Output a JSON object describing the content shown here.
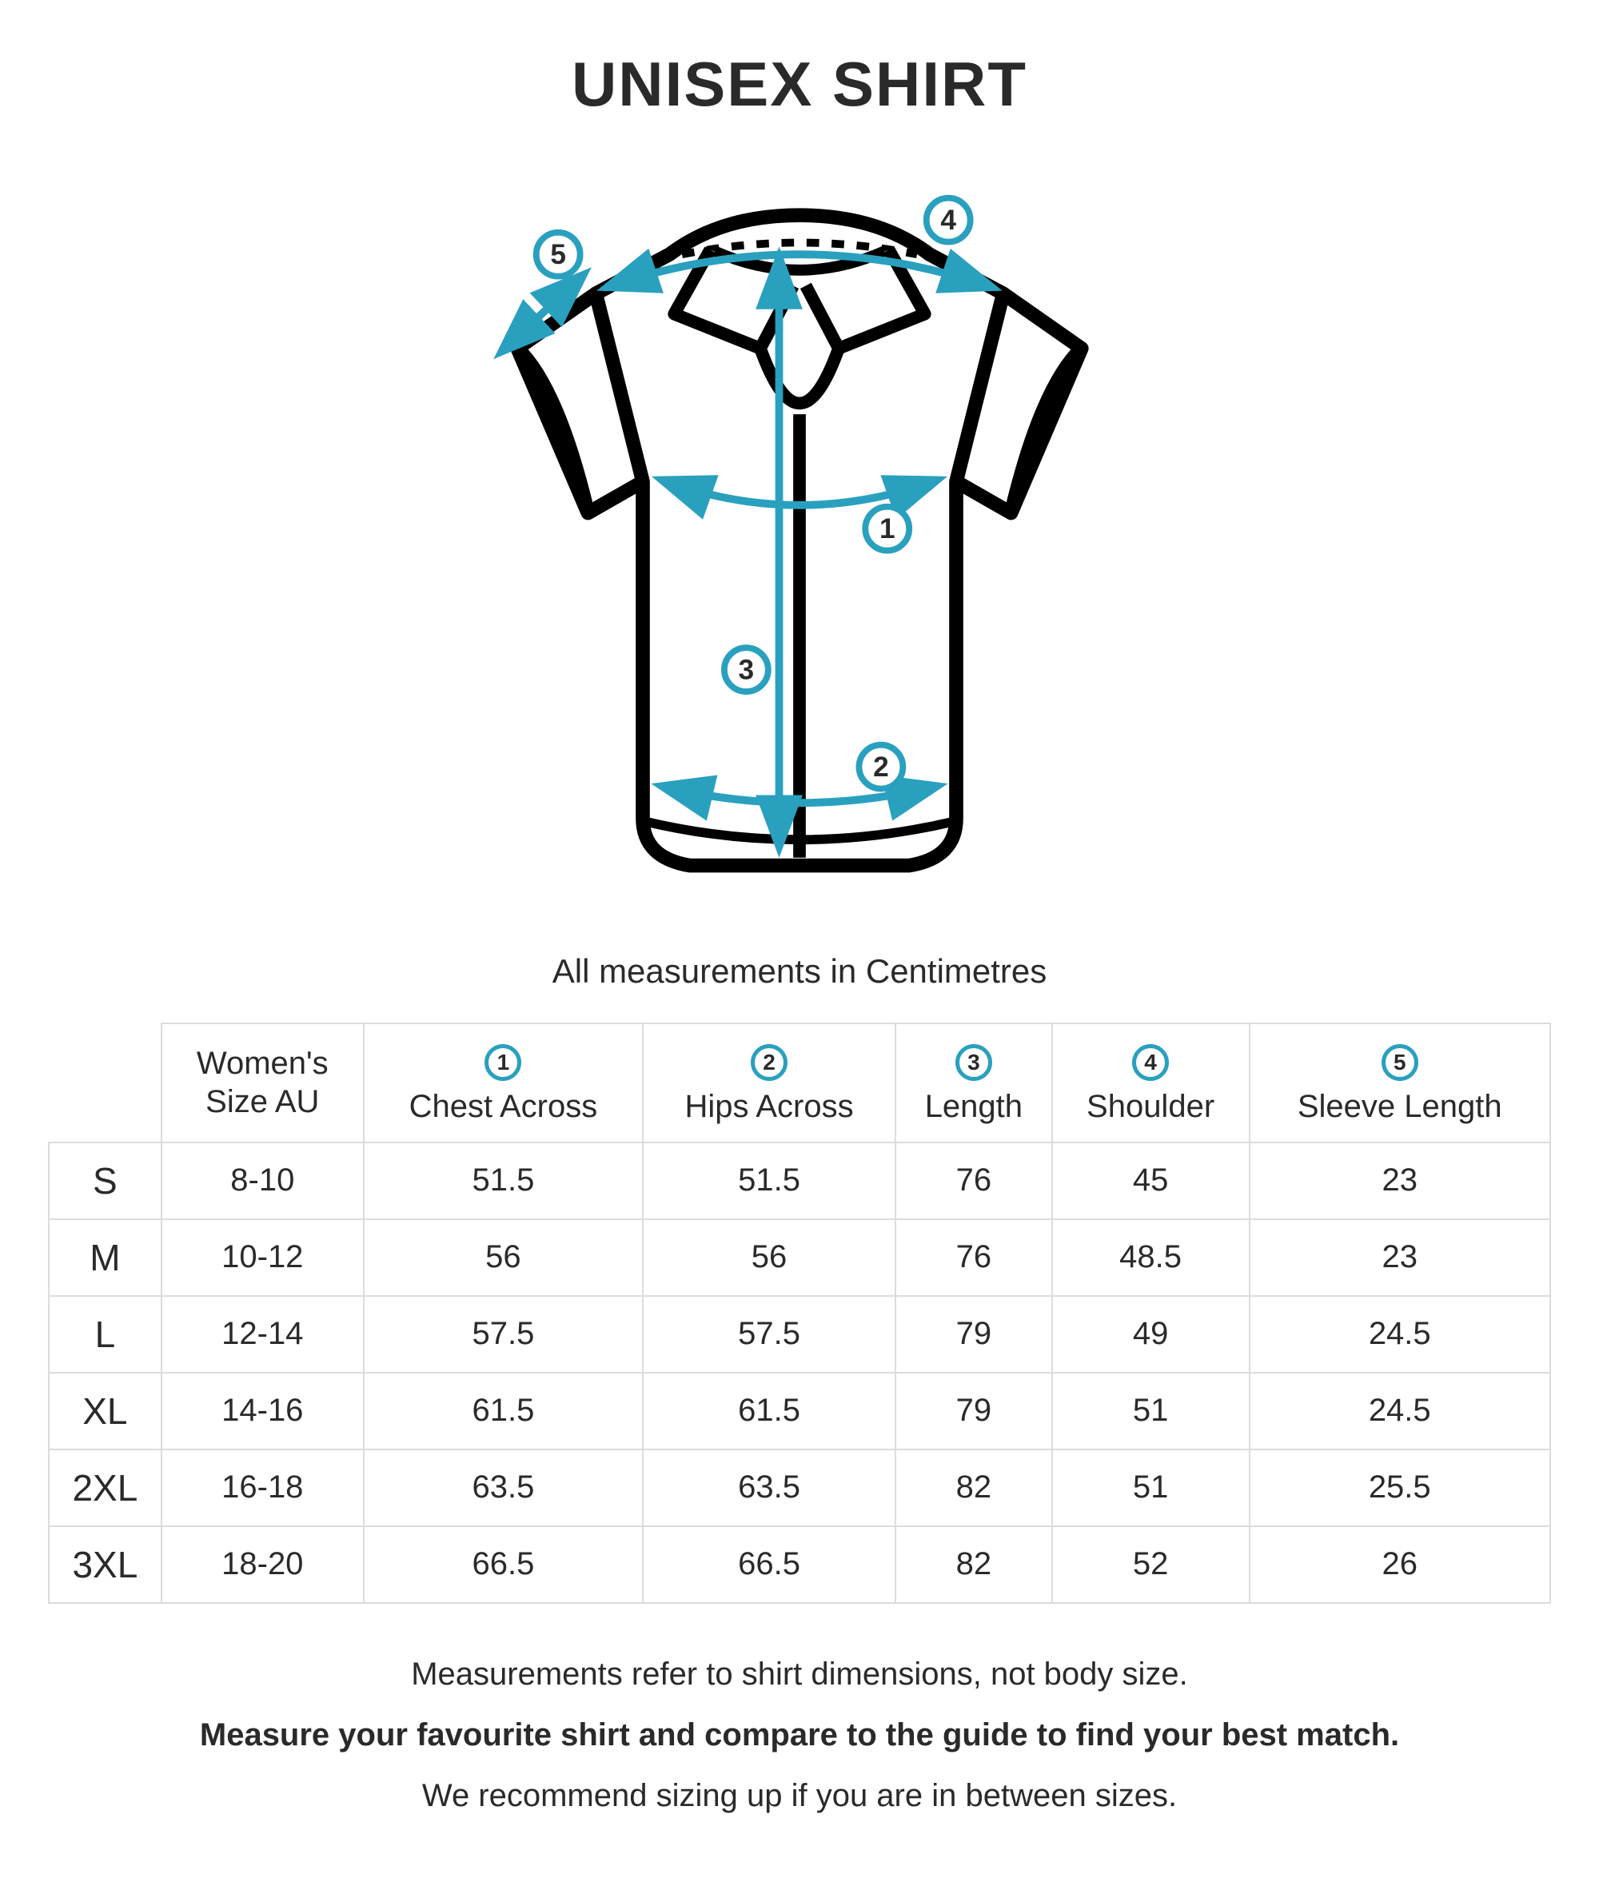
{
  "title": "UNISEX SHIRT",
  "subtitle": "All measurements in Centimetres",
  "accent_color": "#2aa0bf",
  "outline_color": "#000000",
  "border_color": "#dcdcdc",
  "diagram": {
    "markers": [
      {
        "id": "1",
        "desc": "Chest Across"
      },
      {
        "id": "2",
        "desc": "Hips Across"
      },
      {
        "id": "3",
        "desc": "Length"
      },
      {
        "id": "4",
        "desc": "Shoulder"
      },
      {
        "id": "5",
        "desc": "Sleeve Length"
      }
    ]
  },
  "table": {
    "columns": [
      {
        "key": "womens",
        "label": "Women's\nSize AU",
        "badge": null
      },
      {
        "key": "chest",
        "label": "Chest Across",
        "badge": "1"
      },
      {
        "key": "hips",
        "label": "Hips Across",
        "badge": "2"
      },
      {
        "key": "length",
        "label": "Length",
        "badge": "3"
      },
      {
        "key": "shoulder",
        "label": "Shoulder",
        "badge": "4"
      },
      {
        "key": "sleeve",
        "label": "Sleeve Length",
        "badge": "5"
      }
    ],
    "rows": [
      {
        "size": "S",
        "cells": [
          "8-10",
          "51.5",
          "51.5",
          "76",
          "45",
          "23"
        ]
      },
      {
        "size": "M",
        "cells": [
          "10-12",
          "56",
          "56",
          "76",
          "48.5",
          "23"
        ]
      },
      {
        "size": "L",
        "cells": [
          "12-14",
          "57.5",
          "57.5",
          "79",
          "49",
          "24.5"
        ]
      },
      {
        "size": "XL",
        "cells": [
          "14-16",
          "61.5",
          "61.5",
          "79",
          "51",
          "24.5"
        ]
      },
      {
        "size": "2XL",
        "cells": [
          "16-18",
          "63.5",
          "63.5",
          "82",
          "51",
          "25.5"
        ]
      },
      {
        "size": "3XL",
        "cells": [
          "18-20",
          "66.5",
          "66.5",
          "82",
          "52",
          "26"
        ]
      }
    ]
  },
  "notes": {
    "line1": "Measurements refer to shirt dimensions, not body size.",
    "line2": "Measure your favourite shirt and compare to the guide to find your best match.",
    "line3": "We recommend sizing up if you are in between sizes."
  }
}
